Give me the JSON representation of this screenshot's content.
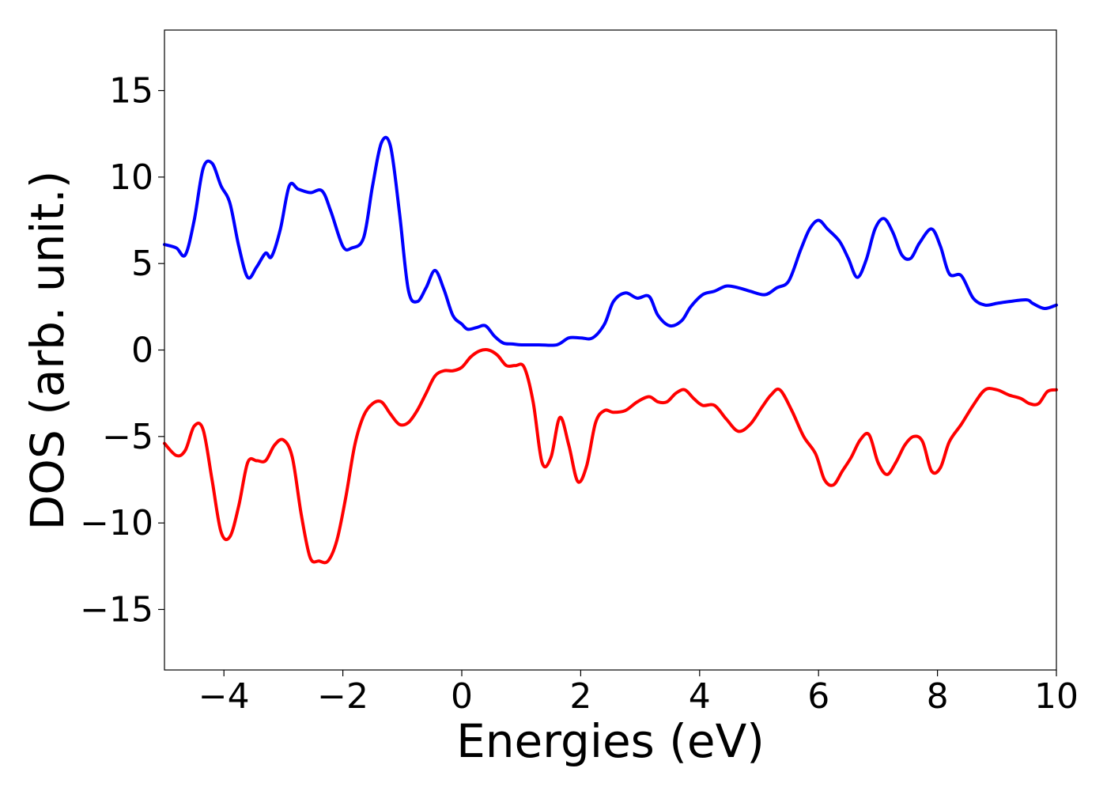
{
  "chart_data": {
    "type": "line",
    "title": "",
    "xlabel": "Energies (eV)",
    "ylabel": "DOS (arb. unit.)",
    "xlim": [
      -5,
      10
    ],
    "ylim": [
      -18.5,
      18.5
    ],
    "xticks": [
      -4,
      -2,
      0,
      2,
      4,
      6,
      8,
      10
    ],
    "xtick_labels": [
      "−4",
      "−2",
      "0",
      "2",
      "4",
      "6",
      "8",
      "10"
    ],
    "yticks": [
      15,
      10,
      5,
      0,
      -5,
      -10,
      -15
    ],
    "ytick_labels": [
      "15",
      "10",
      "5",
      "0",
      "−5",
      "−10",
      "−15"
    ],
    "grid": false,
    "legend": "none",
    "series": [
      {
        "color": "#0000ff",
        "x": [
          -5.0,
          -4.8,
          -4.65,
          -4.5,
          -4.35,
          -4.2,
          -4.05,
          -3.9,
          -3.75,
          -3.6,
          -3.45,
          -3.3,
          -3.2,
          -3.05,
          -2.9,
          -2.75,
          -2.55,
          -2.35,
          -2.2,
          -2.0,
          -1.85,
          -1.65,
          -1.5,
          -1.35,
          -1.2,
          -1.05,
          -0.9,
          -0.75,
          -0.6,
          -0.45,
          -0.3,
          -0.15,
          0.0,
          0.1,
          0.25,
          0.4,
          0.55,
          0.7,
          0.85,
          1.0,
          1.3,
          1.6,
          1.8,
          2.0,
          2.2,
          2.4,
          2.55,
          2.75,
          2.95,
          3.15,
          3.3,
          3.5,
          3.7,
          3.85,
          4.05,
          4.25,
          4.45,
          4.65,
          4.85,
          5.1,
          5.3,
          5.5,
          5.7,
          5.85,
          6.0,
          6.15,
          6.35,
          6.5,
          6.65,
          6.8,
          6.95,
          7.1,
          7.25,
          7.4,
          7.55,
          7.7,
          7.9,
          8.05,
          8.2,
          8.4,
          8.6,
          8.8,
          9.0,
          9.2,
          9.5,
          9.6,
          9.8,
          10.0
        ],
        "y": [
          6.1,
          5.9,
          5.5,
          7.5,
          10.5,
          10.8,
          9.5,
          8.5,
          6.0,
          4.2,
          4.8,
          5.6,
          5.4,
          7.0,
          9.5,
          9.3,
          9.1,
          9.2,
          8.0,
          6.0,
          5.9,
          6.5,
          9.5,
          12.0,
          11.8,
          8.0,
          3.5,
          2.8,
          3.6,
          4.6,
          3.5,
          2.0,
          1.5,
          1.2,
          1.3,
          1.4,
          0.8,
          0.4,
          0.35,
          0.3,
          0.3,
          0.3,
          0.7,
          0.7,
          0.7,
          1.5,
          2.8,
          3.3,
          3.0,
          3.1,
          2.0,
          1.4,
          1.7,
          2.5,
          3.2,
          3.4,
          3.7,
          3.6,
          3.4,
          3.2,
          3.6,
          4.0,
          5.8,
          7.0,
          7.5,
          7.0,
          6.3,
          5.3,
          4.2,
          5.2,
          7.0,
          7.6,
          6.8,
          5.5,
          5.3,
          6.2,
          7.0,
          6.0,
          4.4,
          4.3,
          3.0,
          2.6,
          2.7,
          2.8,
          2.9,
          2.7,
          2.4,
          2.6
        ]
      },
      {
        "color": "#ff0000",
        "x": [
          -5.0,
          -4.8,
          -4.65,
          -4.5,
          -4.35,
          -4.2,
          -4.05,
          -3.9,
          -3.75,
          -3.6,
          -3.45,
          -3.3,
          -3.15,
          -3.0,
          -2.85,
          -2.7,
          -2.55,
          -2.4,
          -2.25,
          -2.1,
          -1.95,
          -1.8,
          -1.65,
          -1.5,
          -1.35,
          -1.2,
          -1.05,
          -0.9,
          -0.75,
          -0.6,
          -0.45,
          -0.3,
          -0.15,
          0.0,
          0.15,
          0.3,
          0.45,
          0.6,
          0.75,
          0.9,
          1.05,
          1.2,
          1.35,
          1.5,
          1.65,
          1.8,
          1.95,
          2.1,
          2.25,
          2.4,
          2.55,
          2.75,
          2.95,
          3.15,
          3.3,
          3.45,
          3.6,
          3.75,
          3.9,
          4.05,
          4.25,
          4.45,
          4.65,
          4.85,
          5.05,
          5.2,
          5.35,
          5.55,
          5.75,
          5.95,
          6.1,
          6.25,
          6.4,
          6.55,
          6.7,
          6.85,
          7.0,
          7.15,
          7.3,
          7.45,
          7.6,
          7.75,
          7.9,
          8.05,
          8.2,
          8.4,
          8.6,
          8.8,
          9.0,
          9.2,
          9.4,
          9.55,
          9.7,
          9.85,
          10.0
        ],
        "y": [
          -5.4,
          -6.1,
          -5.8,
          -4.4,
          -4.6,
          -7.5,
          -10.5,
          -10.8,
          -9.0,
          -6.5,
          -6.4,
          -6.4,
          -5.5,
          -5.2,
          -6.2,
          -9.5,
          -12.0,
          -12.2,
          -12.2,
          -11.0,
          -8.5,
          -5.5,
          -3.8,
          -3.1,
          -3.0,
          -3.7,
          -4.3,
          -4.2,
          -3.5,
          -2.5,
          -1.5,
          -1.2,
          -1.2,
          -1.0,
          -0.4,
          -0.05,
          0.0,
          -0.3,
          -0.9,
          -0.9,
          -1.0,
          -3.0,
          -6.5,
          -6.2,
          -3.9,
          -5.5,
          -7.6,
          -6.7,
          -4.2,
          -3.5,
          -3.6,
          -3.5,
          -3.0,
          -2.7,
          -3.0,
          -3.0,
          -2.5,
          -2.3,
          -2.8,
          -3.2,
          -3.2,
          -4.0,
          -4.7,
          -4.3,
          -3.3,
          -2.6,
          -2.3,
          -3.5,
          -5.0,
          -6.0,
          -7.5,
          -7.8,
          -7.0,
          -6.2,
          -5.2,
          -4.9,
          -6.5,
          -7.2,
          -6.5,
          -5.5,
          -5.0,
          -5.3,
          -7.0,
          -6.8,
          -5.3,
          -4.3,
          -3.2,
          -2.3,
          -2.3,
          -2.6,
          -2.8,
          -3.1,
          -3.1,
          -2.4,
          -2.3
        ]
      }
    ]
  }
}
